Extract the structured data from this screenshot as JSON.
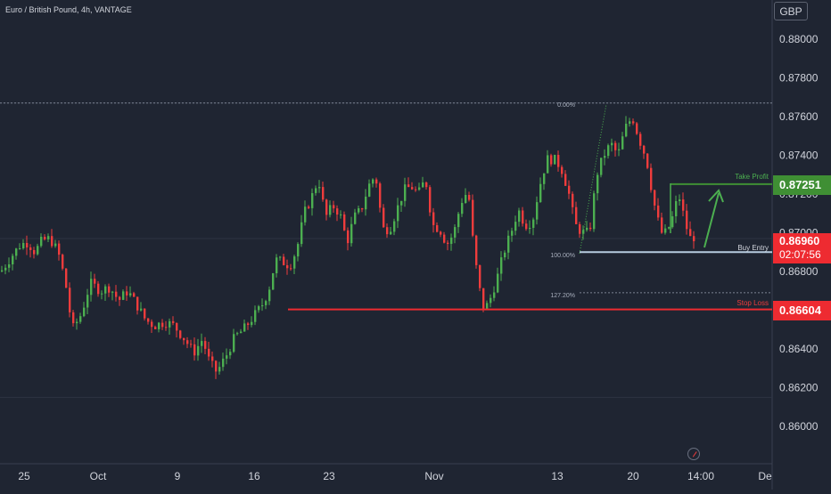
{
  "header": {
    "title": "Euro / British Pound, 4h, VANTAGE",
    "currency": "GBP"
  },
  "price_tags": {
    "take_profit": "0.87251",
    "current_price": "0.86960",
    "countdown": "02:07:56",
    "stop_loss": "0.86604"
  },
  "annotations": {
    "take_profit_label": "Take Profit",
    "buy_entry_label": "Buy Entry",
    "stop_loss_label": "Stop Loss",
    "fib_0": "0.00%",
    "fib_100": "100.00%",
    "fib_127": "127.20%"
  },
  "colors": {
    "background": "#1f2532",
    "up_candle": "#4caf50",
    "down_candle": "#ef3c3c",
    "take_profit": "#3f8f34",
    "stop_loss": "#ee2b31",
    "buy_entry": "#b7cce0",
    "grid": "#2e3443",
    "text": "#d1d4dc"
  },
  "chart_data": {
    "type": "candlestick",
    "symbol": "Euro / British Pound",
    "timeframe": "4h",
    "y_axis": {
      "ticks": [
        "0.88000",
        "0.87800",
        "0.87600",
        "0.87400",
        "0.87200",
        "0.87000",
        "0.86800",
        "0.86600",
        "0.86400",
        "0.86200",
        "0.86000"
      ],
      "range": [
        0.8589,
        0.8812
      ]
    },
    "x_axis": {
      "ticks": [
        "25",
        "Oct",
        "9",
        "16",
        "23",
        "Nov",
        "13",
        "20",
        "14:00",
        "De"
      ]
    },
    "levels": {
      "take_profit": 0.87251,
      "buy_entry": 0.869,
      "stop_loss": 0.86604,
      "fib_0": 0.8767,
      "fib_100": 0.869,
      "fib_127": 0.8669
    },
    "price_path": [
      [
        0,
        0.868
      ],
      [
        12,
        0.8688
      ],
      [
        22,
        0.8694
      ],
      [
        30,
        0.8695
      ],
      [
        38,
        0.869
      ],
      [
        46,
        0.8696
      ],
      [
        55,
        0.8697
      ],
      [
        64,
        0.869
      ],
      [
        72,
        0.8675
      ],
      [
        80,
        0.865
      ],
      [
        90,
        0.8658
      ],
      [
        100,
        0.8674
      ],
      [
        112,
        0.867
      ],
      [
        122,
        0.8672
      ],
      [
        132,
        0.8665
      ],
      [
        142,
        0.867
      ],
      [
        152,
        0.8663
      ],
      [
        162,
        0.8655
      ],
      [
        172,
        0.8652
      ],
      [
        184,
        0.8654
      ],
      [
        194,
        0.8652
      ],
      [
        206,
        0.8645
      ],
      [
        216,
        0.8638
      ],
      [
        226,
        0.8645
      ],
      [
        234,
        0.8633
      ],
      [
        242,
        0.8628
      ],
      [
        252,
        0.8636
      ],
      [
        262,
        0.8646
      ],
      [
        272,
        0.865
      ],
      [
        282,
        0.8656
      ],
      [
        292,
        0.8662
      ],
      [
        300,
        0.867
      ],
      [
        308,
        0.8686
      ],
      [
        316,
        0.8685
      ],
      [
        324,
        0.8683
      ],
      [
        332,
        0.8692
      ],
      [
        340,
        0.871
      ],
      [
        348,
        0.8718
      ],
      [
        356,
        0.8728
      ],
      [
        364,
        0.8708
      ],
      [
        372,
        0.8714
      ],
      [
        380,
        0.871
      ],
      [
        388,
        0.8695
      ],
      [
        396,
        0.8708
      ],
      [
        404,
        0.8712
      ],
      [
        412,
        0.8724
      ],
      [
        420,
        0.873
      ],
      [
        428,
        0.8702
      ],
      [
        436,
        0.8702
      ],
      [
        444,
        0.8712
      ],
      [
        452,
        0.8722
      ],
      [
        460,
        0.8724
      ],
      [
        468,
        0.872
      ],
      [
        476,
        0.8728
      ],
      [
        484,
        0.8704
      ],
      [
        492,
        0.8702
      ],
      [
        500,
        0.8694
      ],
      [
        508,
        0.87
      ],
      [
        516,
        0.8716
      ],
      [
        524,
        0.8722
      ],
      [
        530,
        0.8692
      ],
      [
        536,
        0.8672
      ],
      [
        542,
        0.866
      ],
      [
        548,
        0.8665
      ],
      [
        556,
        0.8676
      ],
      [
        564,
        0.869
      ],
      [
        572,
        0.87
      ],
      [
        580,
        0.8712
      ],
      [
        588,
        0.8704
      ],
      [
        596,
        0.8706
      ],
      [
        604,
        0.8724
      ],
      [
        612,
        0.8738
      ],
      [
        620,
        0.8738
      ],
      [
        628,
        0.8734
      ],
      [
        636,
        0.8722
      ],
      [
        644,
        0.8704
      ],
      [
        652,
        0.87
      ],
      [
        660,
        0.87
      ],
      [
        668,
        0.873
      ],
      [
        676,
        0.874
      ],
      [
        684,
        0.8746
      ],
      [
        692,
        0.874
      ],
      [
        700,
        0.8754
      ],
      [
        708,
        0.876
      ],
      [
        716,
        0.8748
      ],
      [
        724,
        0.8738
      ],
      [
        732,
        0.8716
      ],
      [
        740,
        0.87
      ],
      [
        746,
        0.87
      ],
      [
        752,
        0.8706
      ],
      [
        760,
        0.872
      ],
      [
        766,
        0.8708
      ],
      [
        772,
        0.8697
      ],
      [
        778,
        0.8698
      ]
    ]
  }
}
